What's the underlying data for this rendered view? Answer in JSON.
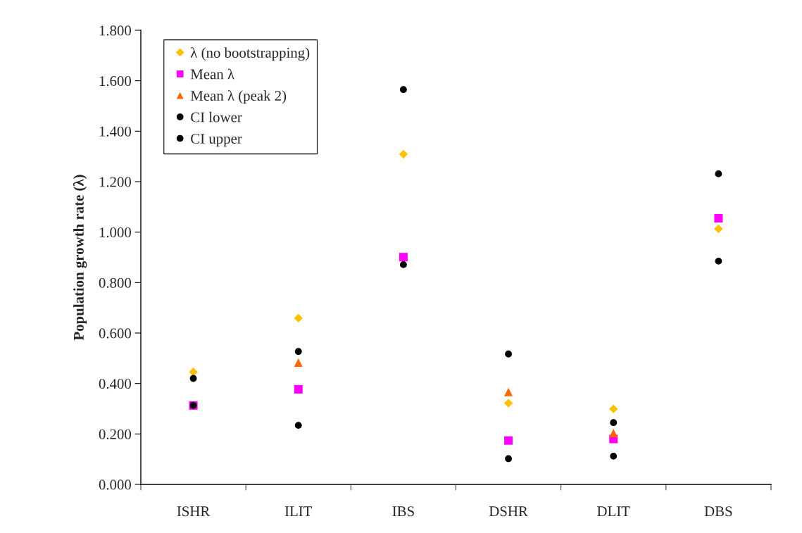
{
  "chart_data": {
    "type": "scatter",
    "ylabel": "Population growth rate (λ)",
    "categories": [
      "ISHR",
      "ILIT",
      "IBS",
      "DSHR",
      "DLIT",
      "DBS"
    ],
    "series": [
      {
        "name": "λ (no bootstrapping)",
        "color": "#ffc000",
        "marker": "diamond",
        "values": [
          0.446,
          0.659,
          1.309,
          0.322,
          0.299,
          1.013
        ]
      },
      {
        "name": "Mean λ",
        "color": "#ff00ff",
        "marker": "square",
        "values": [
          0.313,
          0.377,
          0.901,
          0.174,
          0.18,
          1.055
        ]
      },
      {
        "name": "Mean λ (peak 2)",
        "color": "#ff6600",
        "marker": "triangle",
        "values": [
          null,
          0.483,
          null,
          0.366,
          0.204,
          null
        ]
      },
      {
        "name": "CI lower",
        "color": "#000000",
        "marker": "circle",
        "values": [
          0.313,
          0.234,
          0.871,
          0.102,
          0.112,
          0.885
        ]
      },
      {
        "name": "CI upper",
        "color": "#000000",
        "marker": "circle",
        "values": [
          0.42,
          0.527,
          1.565,
          0.517,
          0.245,
          1.231
        ]
      }
    ],
    "ylim": [
      0,
      1.8
    ],
    "yticks": [
      {
        "value": 0,
        "label": "0.000"
      },
      {
        "value": 0.2,
        "label": "0.200"
      },
      {
        "value": 0.4,
        "label": "0.400"
      },
      {
        "value": 0.6,
        "label": "0.600"
      },
      {
        "value": 0.8,
        "label": "0.800"
      },
      {
        "value": 1.0,
        "label": "1.000"
      },
      {
        "value": 1.2,
        "label": "1.200"
      },
      {
        "value": 1.4,
        "label": "1.400"
      },
      {
        "value": 1.6,
        "label": "1.600"
      },
      {
        "value": 1.8,
        "label": "1.800"
      }
    ],
    "grid": false,
    "legend": "top left"
  }
}
